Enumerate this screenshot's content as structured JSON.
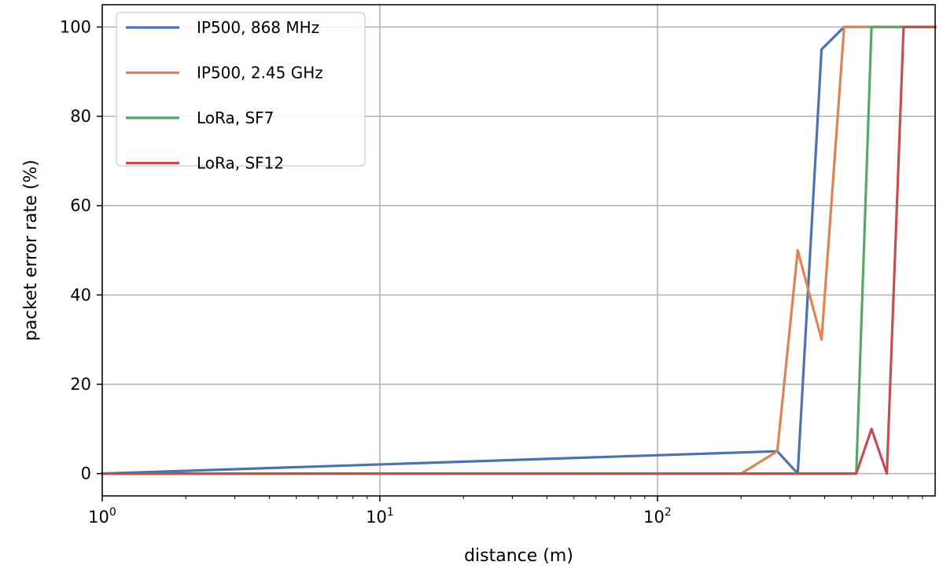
{
  "chart_data": {
    "type": "line",
    "xlabel": "distance (m)",
    "ylabel": "packet error rate (%)",
    "xscale": "log",
    "xlim": [
      1,
      1000
    ],
    "ylim": [
      -5,
      105
    ],
    "grid": true,
    "legend_position": "top-left",
    "x_ticks": [
      {
        "value": 1,
        "base": "10",
        "exp": "0"
      },
      {
        "value": 10,
        "base": "10",
        "exp": "1"
      },
      {
        "value": 100,
        "base": "10",
        "exp": "2"
      }
    ],
    "y_ticks": [
      0,
      20,
      40,
      60,
      80,
      100
    ],
    "series": [
      {
        "name": "IP500, 868 MHz",
        "color": "#4c72b0",
        "x": [
          1,
          270,
          320,
          390,
          470,
          1000
        ],
        "y": [
          0,
          5,
          0,
          95,
          100,
          100
        ]
      },
      {
        "name": "IP500, 2.45 GHz",
        "color": "#dd8452",
        "x": [
          1,
          200,
          270,
          320,
          390,
          470,
          1000
        ],
        "y": [
          0,
          0,
          5,
          50,
          30,
          100,
          100
        ]
      },
      {
        "name": "LoRa, SF7",
        "color": "#55a868",
        "x": [
          1,
          520,
          590,
          1000
        ],
        "y": [
          0,
          0,
          100,
          100
        ]
      },
      {
        "name": "LoRa, SF12",
        "color": "#c44e52",
        "x": [
          1,
          520,
          590,
          670,
          770,
          1000
        ],
        "y": [
          0,
          0,
          10,
          0,
          100,
          100
        ]
      }
    ]
  }
}
